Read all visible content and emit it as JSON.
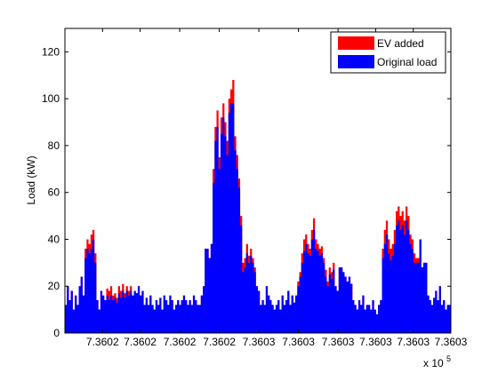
{
  "chart_data": {
    "type": "area",
    "title": "",
    "xlabel": "",
    "ylabel": "Load (kW)",
    "x_exponent_label": "x 10",
    "x_exponent_power": "5",
    "ylim": [
      0,
      130
    ],
    "yticks": [
      0,
      20,
      40,
      60,
      80,
      100,
      120
    ],
    "xlim": [
      0,
      195
    ],
    "xtick_positions": [
      19,
      38,
      58,
      78,
      98,
      118,
      138,
      157,
      176,
      195
    ],
    "xtick_labels": [
      "7.3602",
      "7.3602",
      "7.3602",
      "7.3602",
      "7.3603",
      "7.3603",
      "7.3603",
      "7.3603",
      "7.3603",
      "7.3603"
    ],
    "grid": false,
    "legend_position": "top-right",
    "colors": {
      "ev": "#ff0000",
      "original": "#0000ff"
    },
    "series": [
      {
        "name": "EV added",
        "key": "ev",
        "values": [
          12,
          20,
          14,
          18,
          10,
          16,
          12,
          20,
          24,
          16,
          36,
          40,
          38,
          42,
          44,
          34,
          14,
          10,
          18,
          16,
          14,
          19,
          18,
          20,
          16,
          17,
          15,
          20,
          18,
          21,
          17,
          20,
          18,
          20,
          16,
          18,
          17,
          20,
          16,
          18,
          12,
          15,
          12,
          16,
          12,
          10,
          14,
          12,
          15,
          10,
          16,
          14,
          12,
          16,
          14,
          10,
          12,
          14,
          12,
          14,
          16,
          14,
          12,
          14,
          12,
          16,
          14,
          12,
          12,
          16,
          20,
          36,
          36,
          32,
          38,
          70,
          88,
          95,
          75,
          92,
          98,
          90,
          82,
          100,
          104,
          108,
          84,
          76,
          66,
          50,
          30,
          32,
          38,
          33,
          36,
          32,
          28,
          20,
          18,
          12,
          14,
          12,
          20,
          16,
          14,
          12,
          10,
          12,
          14,
          10,
          16,
          12,
          14,
          18,
          12,
          16,
          13,
          16,
          22,
          26,
          34,
          40,
          42,
          38,
          36,
          44,
          49,
          40,
          38,
          36,
          37,
          32,
          27,
          22,
          28,
          26,
          30,
          20,
          18,
          28,
          28,
          26,
          24,
          22,
          24,
          21,
          14,
          12,
          10,
          14,
          12,
          16,
          10,
          12,
          12,
          10,
          14,
          10,
          8,
          12,
          14,
          36,
          44,
          48,
          40,
          36,
          38,
          44,
          52,
          54,
          50,
          52,
          48,
          54,
          50,
          42,
          40,
          34,
          32,
          32,
          40,
          28,
          30,
          30,
          16,
          14,
          12,
          15,
          18,
          14,
          20,
          12,
          14,
          10,
          12,
          12
        ]
      },
      {
        "name": "Original load",
        "key": "original",
        "values": [
          12,
          20,
          14,
          18,
          10,
          16,
          12,
          20,
          24,
          16,
          32,
          36,
          34,
          36,
          40,
          30,
          14,
          10,
          18,
          16,
          14,
          16,
          14,
          16,
          14,
          15,
          13,
          17,
          15,
          18,
          15,
          18,
          16,
          18,
          16,
          18,
          17,
          20,
          16,
          18,
          12,
          15,
          12,
          16,
          12,
          10,
          14,
          12,
          15,
          10,
          16,
          14,
          12,
          16,
          14,
          10,
          12,
          14,
          12,
          14,
          16,
          14,
          12,
          14,
          12,
          16,
          14,
          12,
          12,
          16,
          20,
          36,
          36,
          32,
          38,
          64,
          82,
          88,
          70,
          85,
          92,
          84,
          76,
          94,
          98,
          98,
          78,
          70,
          62,
          46,
          26,
          28,
          34,
          30,
          33,
          30,
          26,
          20,
          18,
          12,
          14,
          12,
          20,
          16,
          14,
          12,
          10,
          12,
          14,
          10,
          16,
          12,
          14,
          18,
          12,
          16,
          13,
          16,
          20,
          24,
          30,
          35,
          38,
          34,
          33,
          40,
          44,
          36,
          35,
          33,
          34,
          30,
          24,
          20,
          25,
          23,
          27,
          20,
          18,
          28,
          28,
          26,
          24,
          22,
          24,
          21,
          14,
          12,
          10,
          14,
          12,
          16,
          10,
          12,
          12,
          10,
          14,
          10,
          8,
          12,
          14,
          32,
          38,
          42,
          34,
          31,
          33,
          38,
          46,
          48,
          44,
          46,
          42,
          48,
          44,
          38,
          36,
          30,
          30,
          30,
          40,
          28,
          30,
          30,
          16,
          14,
          12,
          15,
          18,
          14,
          20,
          12,
          14,
          10,
          12,
          12
        ]
      }
    ]
  }
}
